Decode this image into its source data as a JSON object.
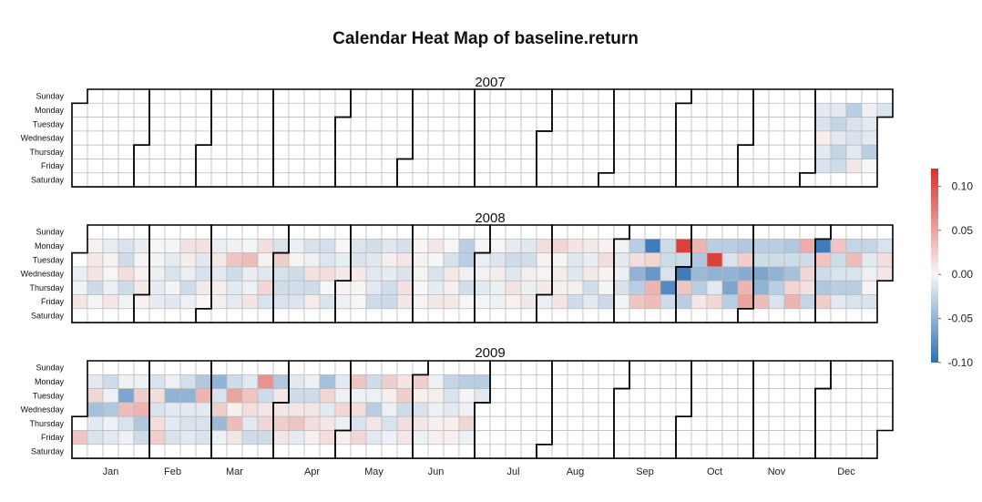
{
  "chart_data": {
    "type": "heatmap",
    "variant": "calendar",
    "title": "Calendar Heat Map of baseline.return",
    "years": [
      "2007",
      "2008",
      "2009"
    ],
    "day_labels": [
      "Sunday",
      "Monday",
      "Tuesday",
      "Wednesday",
      "Thursday",
      "Friday",
      "Saturday"
    ],
    "month_labels": [
      "Jan",
      "Feb",
      "Mar",
      "Apr",
      "May",
      "Jun",
      "Jul",
      "Aug",
      "Sep",
      "Oct",
      "Nov",
      "Dec"
    ],
    "color_scale": {
      "min": -0.1,
      "max": 0.12,
      "ticks": [
        "0.10",
        "0.05",
        "0.00",
        "-0.05",
        "-0.10"
      ],
      "tick_values": [
        0.1,
        0.05,
        0.0,
        -0.05,
        -0.1
      ],
      "colors": {
        "negative": "#2b6fb3",
        "mid": "#f7f7f7",
        "positive": "#d7302a"
      }
    },
    "data_note": "approximate daily values read off the color scale (weekdays only); days without data are blank",
    "values": {
      "2007-12-03": -0.01,
      "2007-12-04": -0.015,
      "2007-12-05": 0.005,
      "2007-12-06": -0.01,
      "2007-12-07": -0.015,
      "2007-12-10": -0.01,
      "2007-12-11": -0.025,
      "2007-12-12": -0.01,
      "2007-12-13": -0.025,
      "2007-12-14": -0.02,
      "2007-12-17": -0.03,
      "2007-12-18": -0.015,
      "2007-12-19": -0.015,
      "2007-12-20": -0.01,
      "2007-12-21": 0.01,
      "2007-12-24": -0.005,
      "2007-12-26": -0.01,
      "2007-12-27": -0.03,
      "2008-01-18": 0.01,
      "2008-01-21": -0.015,
      "2008-01-22": -0.02,
      "2008-01-23": 0.015,
      "2008-01-24": -0.02,
      "2008-02-13": -0.015,
      "2008-03-11": 0.03,
      "2008-03-18": 0.035,
      "2008-03-24": 0.015,
      "2008-03-27": 0.02,
      "2008-04-01": 0.025,
      "2008-04-23": 0.015,
      "2008-06-09": 0.01,
      "2008-06-23": -0.03,
      "2008-06-24": -0.03,
      "2008-07-15": -0.02,
      "2008-07-28": 0.015,
      "2008-08-04": 0.02,
      "2008-08-26": 0.015,
      "2008-09-02": -0.01,
      "2008-09-08": -0.03,
      "2008-09-09": 0.015,
      "2008-09-10": -0.05,
      "2008-09-11": -0.03,
      "2008-09-12": 0.03,
      "2008-09-15": -0.09,
      "2008-09-16": 0.02,
      "2008-09-17": -0.07,
      "2008-09-18": 0.04,
      "2008-09-19": 0.035,
      "2008-09-22": -0.02,
      "2008-09-23": -0.02,
      "2008-09-24": -0.015,
      "2008-09-25": -0.08,
      "2008-09-26": -0.02,
      "2008-09-29": 0.11,
      "2008-09-30": -0.02,
      "2008-10-01": -0.09,
      "2008-10-02": 0.03,
      "2008-10-03": -0.03,
      "2008-10-06": 0.04,
      "2008-10-07": -0.035,
      "2008-10-08": -0.045,
      "2008-10-09": -0.03,
      "2008-10-10": 0.01,
      "2008-10-13": -0.03,
      "2008-10-14": 0.11,
      "2008-10-15": -0.05,
      "2008-10-16": -0.01,
      "2008-10-17": 0.02,
      "2008-10-20": -0.03,
      "2008-10-21": -0.015,
      "2008-10-22": -0.05,
      "2008-10-23": -0.06,
      "2008-10-24": -0.03,
      "2008-10-27": -0.035,
      "2008-10-28": 0.025,
      "2008-10-29": -0.055,
      "2008-10-30": 0.04,
      "2008-10-31": 0.05,
      "2008-11-03": -0.03,
      "2008-11-04": -0.02,
      "2008-11-05": -0.06,
      "2008-11-06": -0.05,
      "2008-11-07": 0.035,
      "2008-11-10": -0.03,
      "2008-11-11": -0.02,
      "2008-11-12": -0.05,
      "2008-11-13": -0.03,
      "2008-11-14": -0.015,
      "2008-11-17": -0.035,
      "2008-11-18": -0.02,
      "2008-11-19": -0.04,
      "2008-11-20": 0.02,
      "2008-11-21": 0.04,
      "2008-11-24": 0.045,
      "2008-11-25": -0.02,
      "2008-11-26": 0.02,
      "2008-11-28": -0.025,
      "2008-12-01": -0.09,
      "2008-12-02": 0.03,
      "2008-12-03": -0.02,
      "2008-12-04": -0.035,
      "2008-12-05": 0.025,
      "2008-12-08": 0.03,
      "2008-12-09": -0.02,
      "2008-12-10": -0.015,
      "2008-12-11": -0.03,
      "2008-12-12": -0.01,
      "2008-12-15": -0.025,
      "2008-12-16": 0.035,
      "2008-12-17": -0.015,
      "2008-12-18": -0.03,
      "2008-12-19": -0.015,
      "2008-12-22": -0.025,
      "2008-12-23": -0.01,
      "2008-12-24": -0.005,
      "2008-12-26": -0.015,
      "2008-12-29": -0.015,
      "2008-12-30": 0.015,
      "2008-12-31": 0.01,
      "2009-01-02": 0.03,
      "2009-01-05": -0.01,
      "2009-01-06": 0.02,
      "2009-01-07": -0.04,
      "2009-01-08": -0.01,
      "2009-01-09": -0.015,
      "2009-01-12": -0.02,
      "2009-01-13": -0.005,
      "2009-01-14": -0.035,
      "2009-01-15": -0.005,
      "2009-01-16": -0.01,
      "2009-01-20": -0.06,
      "2009-01-21": 0.035,
      "2009-01-22": -0.015,
      "2009-01-23": -0.005,
      "2009-01-26": -0.005,
      "2009-01-27": 0.025,
      "2009-01-28": 0.04,
      "2009-01-29": -0.035,
      "2009-01-30": -0.02,
      "2009-02-02": -0.015,
      "2009-02-03": 0.015,
      "2009-02-04": -0.015,
      "2009-02-05": 0.015,
      "2009-02-06": 0.025,
      "2009-02-09": -0.005,
      "2009-02-10": -0.05,
      "2009-02-11": -0.01,
      "2009-02-12": -0.01,
      "2009-02-13": -0.015,
      "2009-02-17": -0.05,
      "2009-02-18": -0.01,
      "2009-02-19": -0.015,
      "2009-02-20": -0.01,
      "2009-02-23": -0.035,
      "2009-02-24": 0.04,
      "2009-02-25": -0.01,
      "2009-02-26": -0.015,
      "2009-02-27": -0.015,
      "2009-03-02": -0.05,
      "2009-03-03": -0.015,
      "2009-03-04": 0.025,
      "2009-03-05": -0.045,
      "2009-03-06": -0.005,
      "2009-03-09": -0.02,
      "2009-03-10": 0.05,
      "2009-03-11": 0.005,
      "2009-03-12": 0.035,
      "2009-03-13": 0.01,
      "2009-03-16": -0.01,
      "2009-03-17": 0.03,
      "2009-03-18": 0.015,
      "2009-03-19": -0.01,
      "2009-03-20": -0.02,
      "2009-03-23": 0.06,
      "2009-03-24": -0.02,
      "2009-03-25": 0.01,
      "2009-03-26": 0.02,
      "2009-03-27": -0.02,
      "2009-03-30": -0.035,
      "2009-03-31": 0.01,
      "2009-04-01": 0.01,
      "2009-04-02": 0.025,
      "2009-04-03": 0.01,
      "2009-04-06": -0.01,
      "2009-04-07": -0.02,
      "2009-04-08": 0.01,
      "2009-04-09": 0.03,
      "2009-04-13": -0.005,
      "2009-04-14": -0.02,
      "2009-04-15": 0.01,
      "2009-04-16": 0.015,
      "2009-04-17": 0.005,
      "2009-04-20": -0.04,
      "2009-04-21": 0.02,
      "2009-04-22": -0.01,
      "2009-04-23": 0.01,
      "2009-04-24": 0.015,
      "2009-04-27": -0.01,
      "2009-04-28": -0.005,
      "2009-04-29": 0.02,
      "2009-04-30": -0.005,
      "2009-05-01": 0.005,
      "2009-05-04": 0.03,
      "2009-05-05": -0.005,
      "2009-05-06": 0.015,
      "2009-05-07": -0.015,
      "2009-05-08": 0.02,
      "2009-05-11": -0.02,
      "2009-05-12": -0.005,
      "2009-05-13": -0.03,
      "2009-05-14": 0.01,
      "2009-05-15": -0.01,
      "2009-05-18": 0.025,
      "2009-05-19": 0.005,
      "2009-05-20": -0.005,
      "2009-05-21": -0.015,
      "2009-05-22": -0.005,
      "2009-05-26": 0.025,
      "2009-05-27": -0.02,
      "2009-05-28": 0.015,
      "2009-05-29": 0.01,
      "2009-06-01": 0.025,
      "2009-06-02": 0.005,
      "2009-06-03": -0.015,
      "2009-06-04": 0.01,
      "2009-06-05": -0.005,
      "2009-06-08": -0.005,
      "2009-06-09": 0.005,
      "2009-06-10": -0.005,
      "2009-06-11": 0.005,
      "2009-06-12": 0.005,
      "2009-06-15": -0.025,
      "2009-06-16": -0.015,
      "2009-06-17": -0.01,
      "2009-06-18": 0.005,
      "2009-06-19": 0.005,
      "2009-06-22": -0.03,
      "2009-06-23": 0.002,
      "2009-06-24": -0.005,
      "2009-06-25": 0.02,
      "2009-06-26": -0.005,
      "2009-06-29": -0.03,
      "2009-06-30": -0.01
    },
    "baseline_noise_note": "days inside the data range that are not listed above fall back to a small default value",
    "data_range": [
      {
        "year": "2007",
        "start": "2007-12-03",
        "end": "2007-12-31"
      },
      {
        "year": "2008",
        "start": "2008-01-02",
        "end": "2008-12-31"
      },
      {
        "year": "2009",
        "start": "2009-01-02",
        "end": "2009-06-30"
      }
    ]
  }
}
